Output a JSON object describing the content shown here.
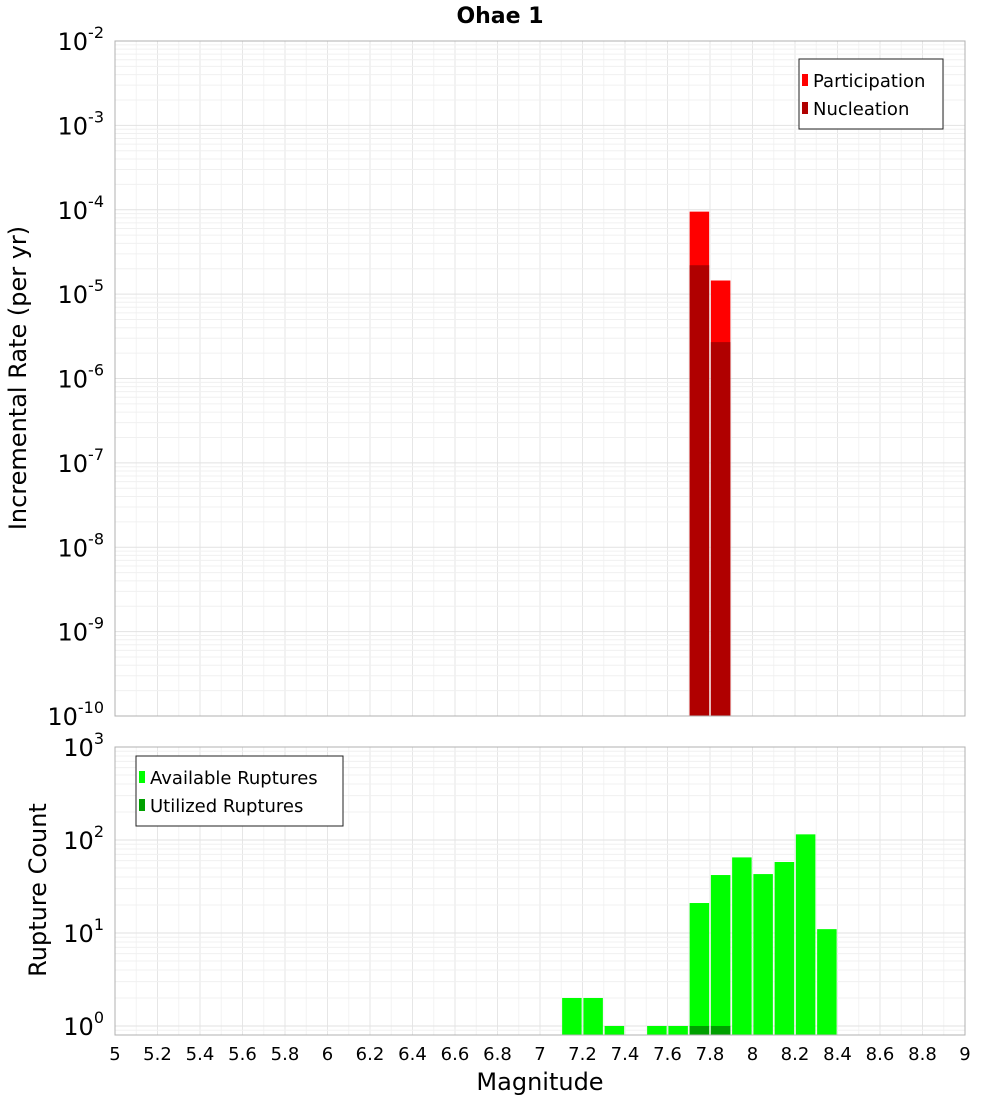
{
  "chart_data": [
    {
      "type": "bar",
      "title": "Ohae 1",
      "ylabel": "Incremental Rate (per yr)",
      "xlim": [
        5,
        9
      ],
      "ylim": [
        1e-10,
        0.01
      ],
      "yscale": "log",
      "grid": true,
      "legend_placement": "top-right",
      "y_tick_exponents": [
        -10,
        -9,
        -8,
        -7,
        -6,
        -5,
        -4,
        -3,
        -2
      ],
      "series": [
        {
          "name": "Participation",
          "color": "#ff0000",
          "points": [
            {
              "x": 7.75,
              "y": 9.5e-05
            },
            {
              "x": 7.85,
              "y": 1.45e-05
            }
          ]
        },
        {
          "name": "Nucleation",
          "color": "#b00000",
          "points": [
            {
              "x": 7.75,
              "y": 2.2e-05
            },
            {
              "x": 7.85,
              "y": 2.7e-06
            }
          ]
        }
      ]
    },
    {
      "type": "bar",
      "xlabel": "Magnitude",
      "ylabel": "Rupture Count",
      "xlim": [
        5,
        9
      ],
      "ylim": [
        0.8,
        1000
      ],
      "yscale": "log",
      "grid": true,
      "legend_placement": "top-left",
      "x_ticks": [
        "5",
        "5.2",
        "5.4",
        "5.6",
        "5.8",
        "6",
        "6.2",
        "6.4",
        "6.6",
        "6.8",
        "7",
        "7.2",
        "7.4",
        "7.6",
        "7.8",
        "8",
        "8.2",
        "8.4",
        "8.6",
        "8.8",
        "9"
      ],
      "y_tick_exponents": [
        0,
        1,
        2,
        3
      ],
      "series": [
        {
          "name": "Available Ruptures",
          "color": "#00ff00",
          "points": [
            {
              "x": 7.15,
              "y": 2
            },
            {
              "x": 7.25,
              "y": 2
            },
            {
              "x": 7.35,
              "y": 1
            },
            {
              "x": 7.55,
              "y": 1
            },
            {
              "x": 7.65,
              "y": 1
            },
            {
              "x": 7.75,
              "y": 21
            },
            {
              "x": 7.85,
              "y": 42
            },
            {
              "x": 7.95,
              "y": 65
            },
            {
              "x": 8.05,
              "y": 43
            },
            {
              "x": 8.15,
              "y": 58
            },
            {
              "x": 8.25,
              "y": 115
            },
            {
              "x": 8.35,
              "y": 11
            }
          ]
        },
        {
          "name": "Utilized Ruptures",
          "color": "#00a000",
          "points": [
            {
              "x": 7.75,
              "y": 1
            },
            {
              "x": 7.85,
              "y": 1
            }
          ]
        }
      ]
    }
  ]
}
